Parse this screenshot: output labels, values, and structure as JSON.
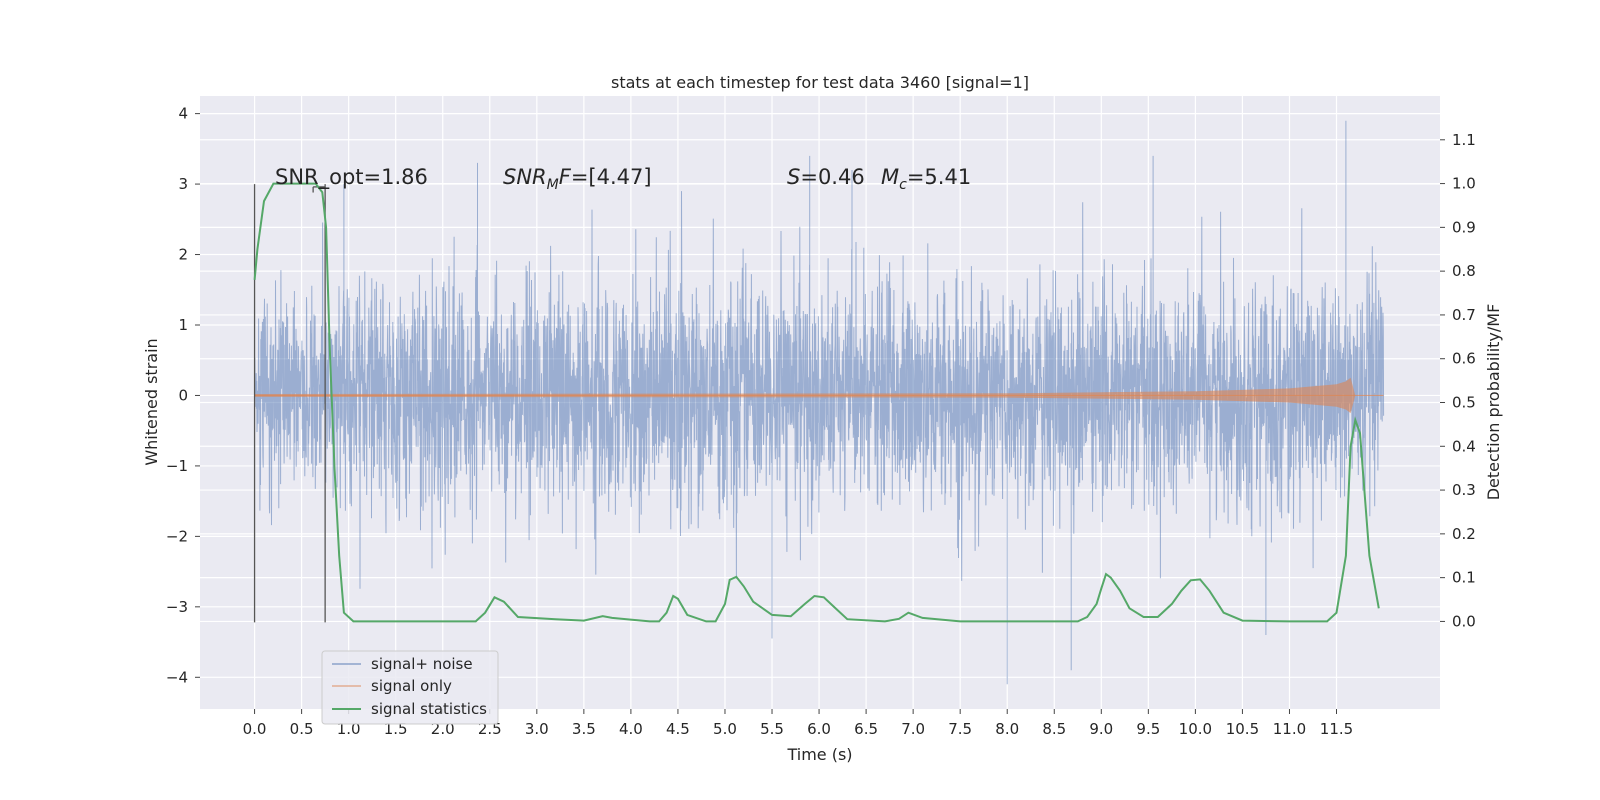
{
  "chart_data": {
    "type": "line",
    "title": "stats at each timestep for test data 3460 [signal=1]",
    "xlabel": "Time (s)",
    "ylabel_left": "Whitened strain",
    "ylabel_right": "Detection probability/MF",
    "xlim": [
      -0.58,
      12.6
    ],
    "ylim_left": [
      -4.45,
      4.25
    ],
    "ylim_right": [
      -0.2,
      1.2
    ],
    "x_ticks": [
      "0.0",
      "0.5",
      "1.0",
      "1.5",
      "2.0",
      "2.5",
      "3.0",
      "3.5",
      "4.0",
      "4.5",
      "5.0",
      "5.5",
      "6.0",
      "6.5",
      "7.0",
      "7.5",
      "8.0",
      "8.5",
      "9.0",
      "9.5",
      "10.0",
      "10.5",
      "11.0",
      "11.5"
    ],
    "y_ticks_left": [
      "−4",
      "−3",
      "−2",
      "−1",
      "0",
      "1",
      "2",
      "3",
      "4"
    ],
    "y_ticks_right": [
      "0.0",
      "0.1",
      "0.2",
      "0.3",
      "0.4",
      "0.5",
      "0.6",
      "0.7",
      "0.8",
      "0.9",
      "1.0",
      "1.1"
    ],
    "grid": true,
    "legend_position": "lower-left",
    "colors": {
      "background": "#eaeaf2",
      "grid": "#ffffff",
      "noise": "#4c72b0",
      "signal": "#dd8452",
      "statistics": "#55a868",
      "markers": "#555555"
    },
    "annotations": {
      "snr_opt": "SNR_opt=1.86",
      "snr_mf_sym": "SNR",
      "snr_mf_sub": "M",
      "snr_mf_tail": "F",
      "snr_mf_val": "=[4.47]",
      "s_sym": "S",
      "s_val": "=0.46",
      "mc_sym": "M",
      "mc_sub": "c",
      "mc_val": "=5.41"
    },
    "marker_lines_x": [
      0.0,
      0.75
    ],
    "series": [
      {
        "name": "signal+ noise",
        "axis": "left",
        "duration": 12.0,
        "sample_rate": 2048,
        "envelope_typical": 2.0,
        "notable_peaks": [
          [
            0.95,
            3.0
          ],
          [
            2.37,
            3.3
          ],
          [
            5.9,
            3.4
          ],
          [
            6.35,
            3.2
          ],
          [
            9.55,
            3.4
          ],
          [
            11.6,
            3.9
          ],
          [
            8.0,
            -4.1
          ],
          [
            8.68,
            -3.9
          ],
          [
            5.5,
            -3.45
          ],
          [
            10.75,
            -3.4
          ]
        ]
      },
      {
        "name": "signal only",
        "axis": "left",
        "envelope": {
          "x": [
            0.0,
            8.0,
            10.0,
            11.0,
            11.5,
            11.6,
            11.65,
            11.7
          ],
          "amplitude": [
            0.02,
            0.03,
            0.06,
            0.1,
            0.16,
            0.2,
            0.25,
            0.0
          ]
        }
      },
      {
        "name": "signal statistics",
        "axis": "right",
        "x": [
          0.0,
          0.03,
          0.1,
          0.2,
          0.3,
          0.5,
          0.65,
          0.72,
          0.76,
          0.8,
          0.85,
          0.9,
          0.95,
          1.05,
          1.5,
          2.0,
          2.35,
          2.45,
          2.55,
          2.65,
          2.8,
          3.2,
          3.5,
          3.7,
          3.8,
          4.2,
          4.3,
          4.38,
          4.45,
          4.5,
          4.6,
          4.8,
          4.9,
          5.0,
          5.05,
          5.12,
          5.2,
          5.3,
          5.5,
          5.7,
          5.85,
          5.95,
          6.05,
          6.15,
          6.3,
          6.7,
          6.85,
          6.95,
          7.1,
          7.5,
          8.0,
          8.5,
          8.75,
          8.85,
          8.95,
          9.0,
          9.05,
          9.1,
          9.2,
          9.3,
          9.45,
          9.6,
          9.75,
          9.85,
          9.95,
          10.05,
          10.15,
          10.3,
          10.5,
          11.0,
          11.4,
          11.5,
          11.6,
          11.65,
          11.7,
          11.75,
          11.85,
          11.95
        ],
        "values": [
          0.78,
          0.85,
          0.96,
          1.0,
          1.0,
          1.0,
          1.0,
          0.98,
          0.9,
          0.62,
          0.35,
          0.15,
          0.02,
          0.0,
          0.0,
          0.0,
          0.0,
          0.02,
          0.055,
          0.045,
          0.01,
          0.005,
          0.002,
          0.012,
          0.008,
          0.0,
          0.0,
          0.02,
          0.058,
          0.052,
          0.015,
          0.0,
          0.0,
          0.04,
          0.095,
          0.102,
          0.08,
          0.045,
          0.015,
          0.012,
          0.04,
          0.058,
          0.055,
          0.035,
          0.005,
          0.0,
          0.006,
          0.02,
          0.008,
          0.0,
          0.0,
          0.0,
          0.0,
          0.01,
          0.04,
          0.075,
          0.108,
          0.1,
          0.07,
          0.03,
          0.01,
          0.01,
          0.04,
          0.07,
          0.094,
          0.096,
          0.07,
          0.02,
          0.002,
          0.0,
          0.0,
          0.02,
          0.15,
          0.4,
          0.46,
          0.43,
          0.15,
          0.03
        ]
      }
    ]
  }
}
